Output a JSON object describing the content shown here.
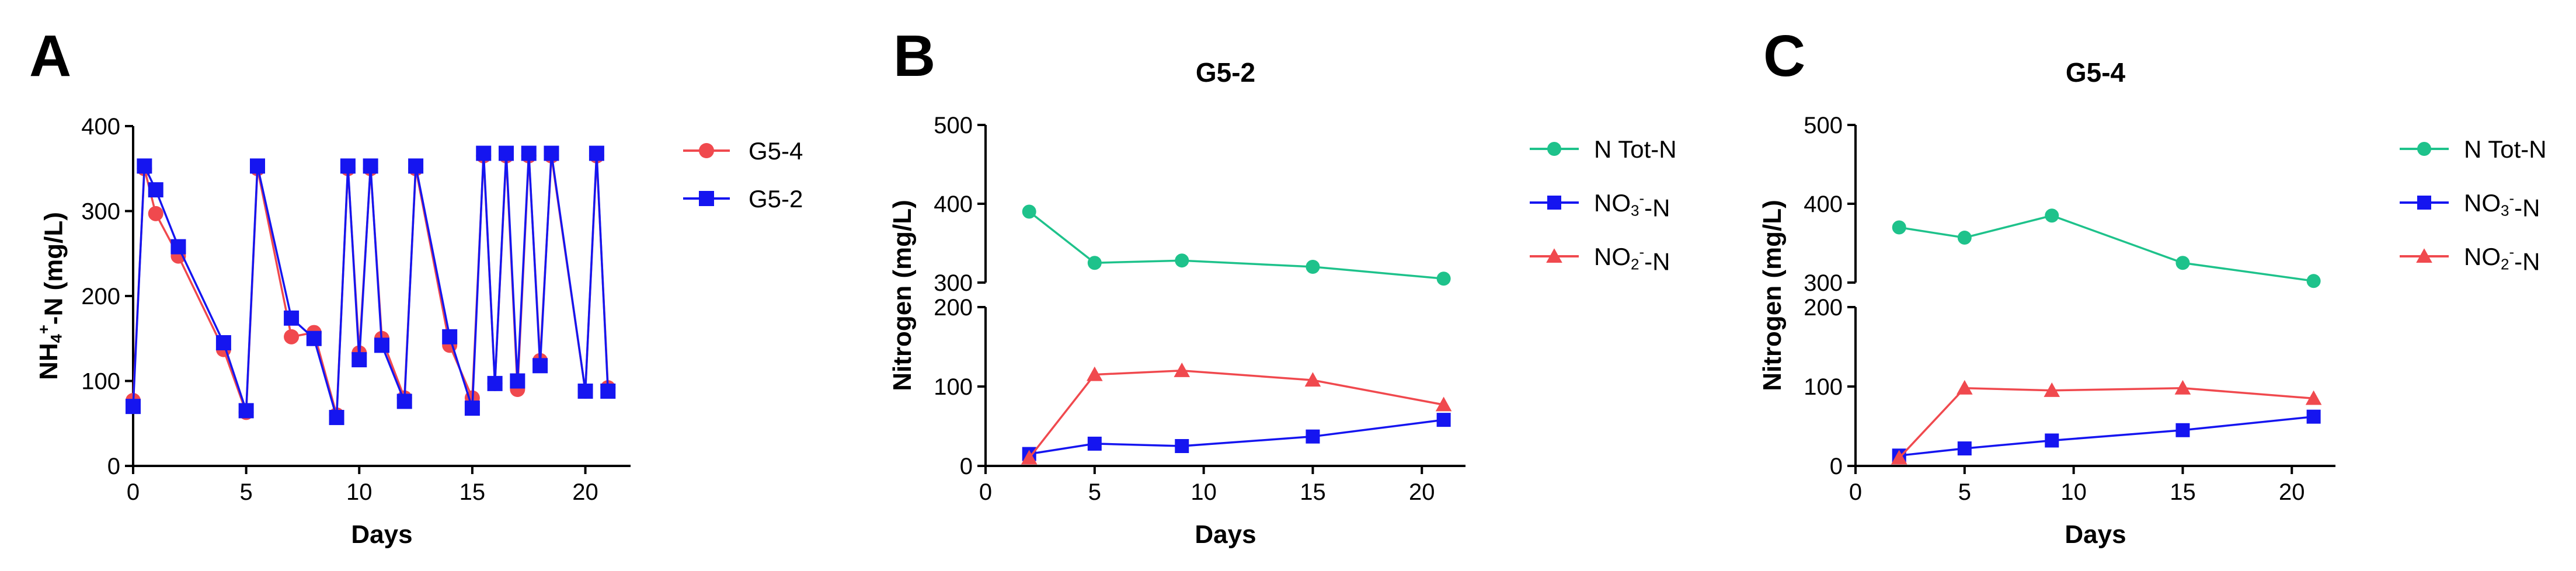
{
  "chart_data": [
    {
      "panel": "A",
      "type": "line",
      "title": "",
      "xlabel": "Days",
      "ylabel_parts": [
        "NH",
        "4",
        "+",
        "-N (mg/L)"
      ],
      "xlim": [
        0,
        22
      ],
      "ylim": [
        0,
        400
      ],
      "xticks": [
        0,
        5,
        10,
        15,
        20
      ],
      "yticks": [
        0,
        100,
        200,
        300,
        400
      ],
      "legend": "right",
      "series": [
        {
          "name": "G5-4",
          "color": "#f0494e",
          "marker": "circle",
          "x": [
            0,
            0.5,
            1,
            2,
            4,
            5,
            5.5,
            7,
            8,
            9,
            9.5,
            10,
            10.5,
            11,
            12,
            12.5,
            14,
            15,
            15.5,
            16,
            16.5,
            17,
            17.5,
            18,
            18.5,
            20,
            20.5,
            21
          ],
          "y": [
            77,
            350,
            297,
            247,
            137,
            63,
            350,
            152,
            157,
            60,
            350,
            133,
            350,
            150,
            80,
            350,
            142,
            80,
            365,
            97,
            365,
            90,
            365,
            124,
            365,
            88,
            365,
            92
          ]
        },
        {
          "name": "G5-2",
          "color": "#1515f0",
          "marker": "square",
          "x": [
            0,
            0.5,
            1,
            2,
            4,
            5,
            5.5,
            7,
            8,
            9,
            9.5,
            10,
            10.5,
            11,
            12,
            12.5,
            14,
            15,
            15.5,
            16,
            16.5,
            17,
            17.5,
            18,
            18.5,
            20,
            20.5,
            21
          ],
          "y": [
            70,
            353,
            325,
            258,
            145,
            65,
            353,
            174,
            150,
            57,
            353,
            125,
            353,
            142,
            76,
            353,
            152,
            68,
            368,
            97,
            368,
            100,
            368,
            118,
            368,
            88,
            368,
            88
          ]
        }
      ]
    },
    {
      "panel": "B",
      "type": "line",
      "title": "G5-2",
      "xlabel": "Days",
      "ylabel": "Nitrogen (mg/L)",
      "xlim": [
        0,
        22
      ],
      "ylim_lower": [
        0,
        200
      ],
      "ylim_upper": [
        300,
        500
      ],
      "axis_break": true,
      "xticks": [
        0,
        5,
        10,
        15,
        20
      ],
      "yticks_lower": [
        0,
        100,
        200
      ],
      "yticks_upper": [
        300,
        400,
        500
      ],
      "legend": "right",
      "series": [
        {
          "name_parts": [
            "N Tot-N"
          ],
          "color": "#1ec28b",
          "marker": "circle",
          "x": [
            2,
            5,
            9,
            15,
            21
          ],
          "y": [
            390,
            325,
            328,
            320,
            305
          ]
        },
        {
          "name_parts": [
            "NO",
            "3",
            "-",
            "-N"
          ],
          "color": "#1515f0",
          "marker": "square",
          "x": [
            2,
            5,
            9,
            15,
            21
          ],
          "y": [
            15,
            28,
            25,
            37,
            58
          ]
        },
        {
          "name_parts": [
            "NO",
            "2",
            "-",
            "-N"
          ],
          "color": "#f0494e",
          "marker": "triangle",
          "x": [
            2,
            5,
            9,
            15,
            21
          ],
          "y": [
            10,
            115,
            120,
            108,
            77
          ]
        }
      ]
    },
    {
      "panel": "C",
      "type": "line",
      "title": "G5-4",
      "xlabel": "Days",
      "ylabel": "Nitrogen (mg/L)",
      "xlim": [
        0,
        22
      ],
      "ylim_lower": [
        0,
        200
      ],
      "ylim_upper": [
        300,
        500
      ],
      "axis_break": true,
      "xticks": [
        0,
        5,
        10,
        15,
        20
      ],
      "yticks_lower": [
        0,
        100,
        200
      ],
      "yticks_upper": [
        300,
        400,
        500
      ],
      "legend": "right",
      "series": [
        {
          "name_parts": [
            "N Tot-N"
          ],
          "color": "#1ec28b",
          "marker": "circle",
          "x": [
            2,
            5,
            9,
            15,
            21
          ],
          "y": [
            370,
            357,
            385,
            325,
            302
          ]
        },
        {
          "name_parts": [
            "NO",
            "3",
            "-",
            "-N"
          ],
          "color": "#1515f0",
          "marker": "square",
          "x": [
            2,
            5,
            9,
            15,
            21
          ],
          "y": [
            13,
            22,
            32,
            45,
            62
          ]
        },
        {
          "name_parts": [
            "NO",
            "2",
            "-",
            "-N"
          ],
          "color": "#f0494e",
          "marker": "triangle",
          "x": [
            2,
            5,
            9,
            15,
            21
          ],
          "y": [
            10,
            98,
            95,
            98,
            85
          ]
        }
      ]
    }
  ]
}
